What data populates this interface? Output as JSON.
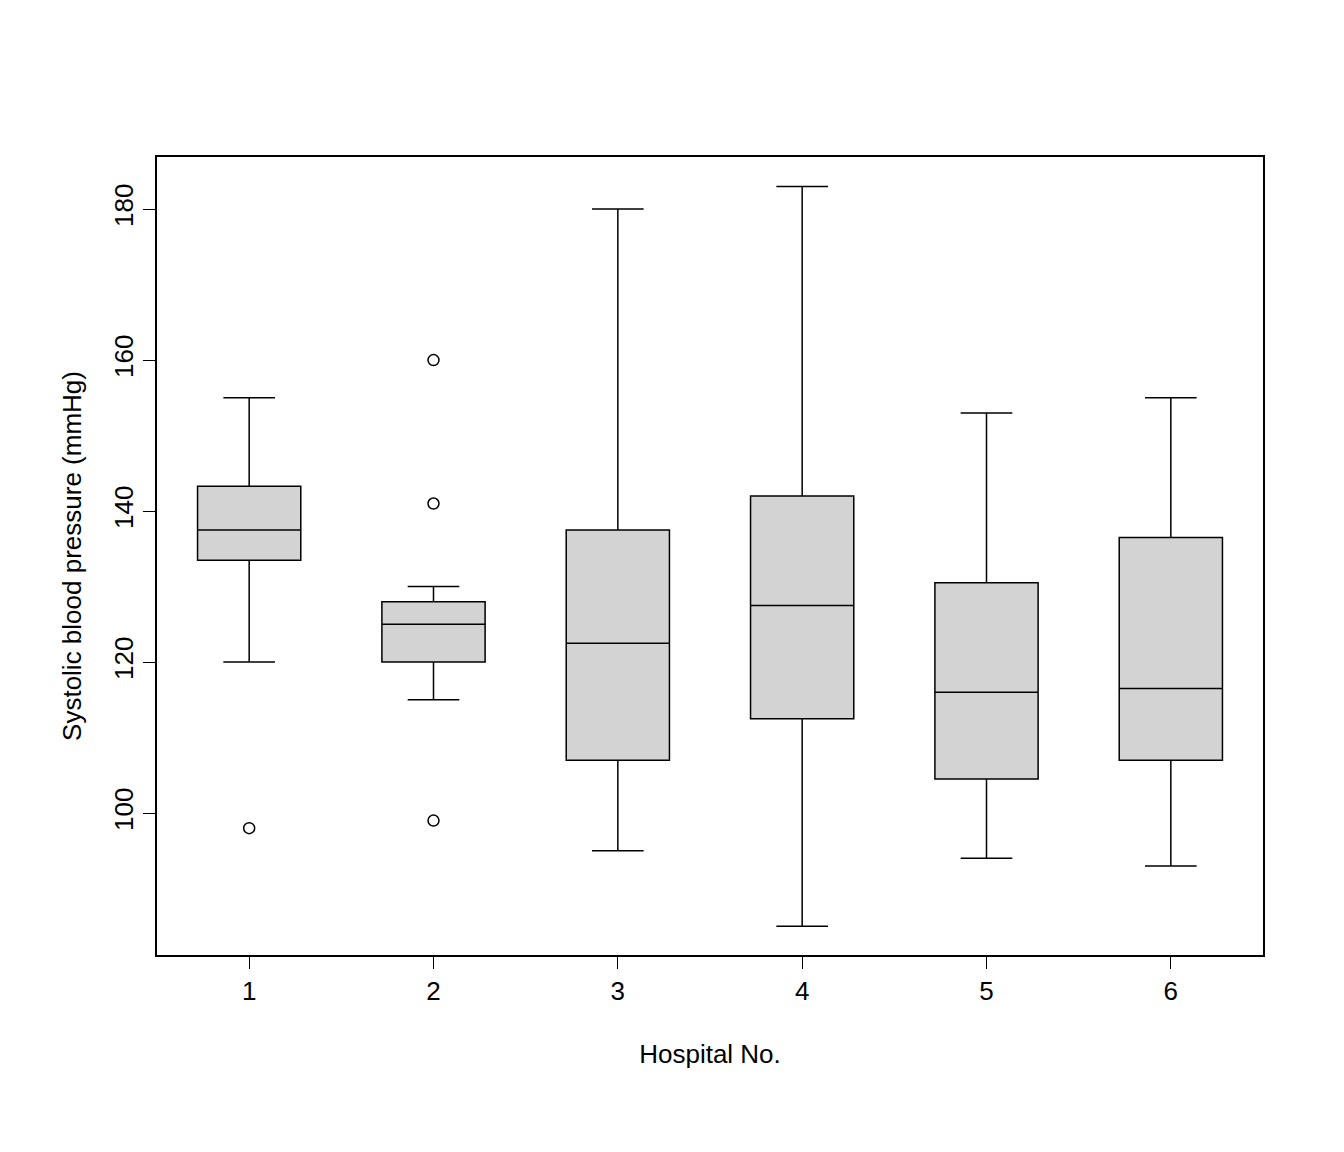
{
  "chart_data": {
    "type": "box",
    "x_label": "Hospital No.",
    "y_label": "Systolic blood pressure (mmHg)",
    "categories": [
      "1",
      "2",
      "3",
      "4",
      "5",
      "6"
    ],
    "series": [
      {
        "color": "#d3d3d3",
        "marker": "circle-open",
        "lowerfence": [
          120,
          115,
          95,
          85,
          94,
          93
        ],
        "q1": [
          133.5,
          120,
          107,
          112.5,
          104.5,
          107
        ],
        "median": [
          137.5,
          125,
          122.5,
          127.5,
          116,
          116.5
        ],
        "q3": [
          143.3,
          128,
          137.5,
          142,
          130.5,
          136.5
        ],
        "upperfence": [
          155,
          130,
          180,
          183,
          153,
          155
        ],
        "outliers": [
          [
            98
          ],
          [
            160,
            141,
            99
          ],
          [],
          [],
          [],
          []
        ]
      }
    ],
    "ylim": [
      81.2,
      186.9
    ],
    "yticks": [
      100,
      120,
      140,
      160,
      180
    ],
    "grid": false
  }
}
